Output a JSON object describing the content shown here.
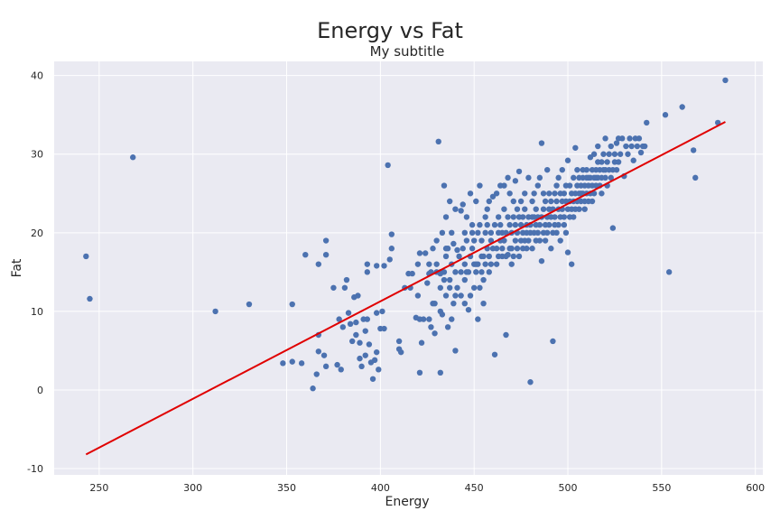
{
  "chart_data": {
    "type": "scatter",
    "title": "Energy vs Fat",
    "subtitle": "My subtitle",
    "xlabel": "Energy",
    "ylabel": "Fat",
    "xlim": [
      226,
      604
    ],
    "ylim": [
      -10.8,
      41.8
    ],
    "xticks": [
      250,
      300,
      350,
      400,
      450,
      500,
      550,
      600
    ],
    "yticks": [
      -10,
      0,
      10,
      20,
      30,
      40
    ],
    "grid": true,
    "colors": {
      "points": "#4c72b0",
      "line": "#e00000",
      "background": "#eaeaf2"
    },
    "fit_line": {
      "x": [
        243,
        584
      ],
      "y": [
        -8.2,
        34.1
      ]
    },
    "points": [
      [
        243,
        17
      ],
      [
        245,
        11.6
      ],
      [
        268,
        29.6
      ],
      [
        312,
        10
      ],
      [
        330,
        10.9
      ],
      [
        348,
        3.4
      ],
      [
        353,
        10.9
      ],
      [
        353,
        3.6
      ],
      [
        358,
        3.4
      ],
      [
        360,
        17.2
      ],
      [
        364,
        0.2
      ],
      [
        366,
        2
      ],
      [
        367,
        16
      ],
      [
        367,
        4.9
      ],
      [
        367,
        7
      ],
      [
        370,
        4.4
      ],
      [
        371,
        17.2
      ],
      [
        371,
        19
      ],
      [
        371,
        3
      ],
      [
        375,
        13
      ],
      [
        377,
        3.2
      ],
      [
        378,
        9
      ],
      [
        379,
        2.6
      ],
      [
        380,
        8
      ],
      [
        381,
        13
      ],
      [
        382,
        14
      ],
      [
        383,
        9.8
      ],
      [
        384,
        8.4
      ],
      [
        385,
        6.2
      ],
      [
        386,
        11.8
      ],
      [
        387,
        7
      ],
      [
        387,
        8.6
      ],
      [
        388,
        12
      ],
      [
        389,
        4
      ],
      [
        389,
        6
      ],
      [
        390,
        3
      ],
      [
        391,
        9
      ],
      [
        392,
        4.4
      ],
      [
        392,
        7.5
      ],
      [
        393,
        15
      ],
      [
        393,
        16
      ],
      [
        393,
        9
      ],
      [
        394,
        5.8
      ],
      [
        395,
        3.5
      ],
      [
        396,
        1.4
      ],
      [
        397,
        3.8
      ],
      [
        398,
        4.8
      ],
      [
        398,
        9.8
      ],
      [
        398,
        15.8
      ],
      [
        399,
        2.6
      ],
      [
        400,
        7.8
      ],
      [
        401,
        10
      ],
      [
        402,
        7.8
      ],
      [
        402,
        15.8
      ],
      [
        404,
        28.6
      ],
      [
        405,
        16.6
      ],
      [
        406,
        18
      ],
      [
        406,
        19.8
      ],
      [
        410,
        5.2
      ],
      [
        410,
        6.2
      ],
      [
        411,
        4.8
      ],
      [
        413,
        13
      ],
      [
        415,
        14.8
      ],
      [
        416,
        13
      ],
      [
        417,
        14.8
      ],
      [
        419,
        9.2
      ],
      [
        420,
        16
      ],
      [
        420,
        12
      ],
      [
        421,
        17.4
      ],
      [
        421,
        9
      ],
      [
        421,
        2.2
      ],
      [
        422,
        6
      ],
      [
        423,
        9
      ],
      [
        424,
        17.4
      ],
      [
        425,
        13.6
      ],
      [
        426,
        14.8
      ],
      [
        426,
        9
      ],
      [
        426,
        16
      ],
      [
        427,
        15
      ],
      [
        427,
        8
      ],
      [
        428,
        18
      ],
      [
        428,
        11
      ],
      [
        429,
        11
      ],
      [
        429,
        7.2
      ],
      [
        430,
        15
      ],
      [
        430,
        16
      ],
      [
        430,
        19
      ],
      [
        431,
        31.6
      ],
      [
        432,
        13
      ],
      [
        432,
        14.8
      ],
      [
        432,
        15
      ],
      [
        432,
        10
      ],
      [
        432,
        2.2
      ],
      [
        433,
        20
      ],
      [
        433,
        9.6
      ],
      [
        434,
        15
      ],
      [
        434,
        14
      ],
      [
        434,
        26
      ],
      [
        435,
        17
      ],
      [
        435,
        22
      ],
      [
        435,
        18
      ],
      [
        435,
        12
      ],
      [
        436,
        18
      ],
      [
        436,
        8
      ],
      [
        437,
        24
      ],
      [
        437,
        14
      ],
      [
        437,
        13
      ],
      [
        438,
        16
      ],
      [
        438,
        9
      ],
      [
        438,
        20
      ],
      [
        439,
        11
      ],
      [
        439,
        18.6
      ],
      [
        440,
        12
      ],
      [
        440,
        15
      ],
      [
        440,
        23
      ],
      [
        440,
        5
      ],
      [
        441,
        17.8
      ],
      [
        441,
        13
      ],
      [
        442,
        17
      ],
      [
        443,
        12
      ],
      [
        443,
        15
      ],
      [
        443,
        22.8
      ],
      [
        444,
        23.6
      ],
      [
        444,
        18
      ],
      [
        445,
        16
      ],
      [
        445,
        20
      ],
      [
        445,
        11
      ],
      [
        445,
        14
      ],
      [
        446,
        22
      ],
      [
        446,
        15
      ],
      [
        446,
        19
      ],
      [
        447,
        10.2
      ],
      [
        447,
        15
      ],
      [
        448,
        12
      ],
      [
        448,
        17
      ],
      [
        448,
        25
      ],
      [
        449,
        18
      ],
      [
        449,
        20
      ],
      [
        449,
        21
      ],
      [
        450,
        16
      ],
      [
        450,
        13
      ],
      [
        450,
        19
      ],
      [
        451,
        16
      ],
      [
        451,
        15
      ],
      [
        451,
        24
      ],
      [
        452,
        16
      ],
      [
        452,
        20
      ],
      [
        452,
        9
      ],
      [
        453,
        21
      ],
      [
        453,
        13
      ],
      [
        453,
        26
      ],
      [
        454,
        15
      ],
      [
        454,
        19
      ],
      [
        454,
        17
      ],
      [
        455,
        14
      ],
      [
        455,
        17
      ],
      [
        455,
        11
      ],
      [
        456,
        20
      ],
      [
        456,
        16
      ],
      [
        456,
        22
      ],
      [
        457,
        21
      ],
      [
        457,
        23
      ],
      [
        457,
        18
      ],
      [
        458,
        15
      ],
      [
        458,
        17
      ],
      [
        458,
        24
      ],
      [
        459,
        16
      ],
      [
        459,
        19
      ],
      [
        459,
        20
      ],
      [
        460,
        18
      ],
      [
        460,
        24.6
      ],
      [
        461,
        4.5
      ],
      [
        461,
        21
      ],
      [
        462,
        16
      ],
      [
        462,
        18
      ],
      [
        462,
        25
      ],
      [
        463,
        20
      ],
      [
        463,
        17
      ],
      [
        463,
        22
      ],
      [
        464,
        21
      ],
      [
        464,
        26
      ],
      [
        464,
        19
      ],
      [
        465,
        17
      ],
      [
        465,
        18
      ],
      [
        465,
        20
      ],
      [
        466,
        23
      ],
      [
        466,
        19
      ],
      [
        466,
        26
      ],
      [
        467,
        17
      ],
      [
        467,
        20
      ],
      [
        467,
        7
      ],
      [
        468,
        27
      ],
      [
        468,
        17.2
      ],
      [
        468,
        22
      ],
      [
        469,
        18
      ],
      [
        469,
        21
      ],
      [
        469,
        25
      ],
      [
        470,
        16
      ],
      [
        470,
        18
      ],
      [
        470,
        20
      ],
      [
        471,
        17
      ],
      [
        471,
        22
      ],
      [
        471,
        24
      ],
      [
        472,
        19
      ],
      [
        472,
        21
      ],
      [
        472,
        26.6
      ],
      [
        473,
        18
      ],
      [
        473,
        20
      ],
      [
        473,
        23
      ],
      [
        474,
        17
      ],
      [
        474,
        22
      ],
      [
        474,
        27.8
      ],
      [
        475,
        19
      ],
      [
        475,
        21
      ],
      [
        475,
        24
      ],
      [
        476,
        18
      ],
      [
        476,
        20
      ],
      [
        476,
        22
      ],
      [
        477,
        19
      ],
      [
        477,
        23
      ],
      [
        477,
        25
      ],
      [
        478,
        18
      ],
      [
        478,
        21
      ],
      [
        478,
        20
      ],
      [
        479,
        22
      ],
      [
        479,
        19
      ],
      [
        479,
        27
      ],
      [
        480,
        20
      ],
      [
        480,
        1
      ],
      [
        480,
        21
      ],
      [
        481,
        22
      ],
      [
        481,
        18
      ],
      [
        481,
        24
      ],
      [
        482,
        20
      ],
      [
        482,
        22
      ],
      [
        482,
        25
      ],
      [
        483,
        19
      ],
      [
        483,
        21
      ],
      [
        483,
        23
      ],
      [
        484,
        20
      ],
      [
        484,
        22
      ],
      [
        484,
        26
      ],
      [
        485,
        21
      ],
      [
        485,
        19
      ],
      [
        485,
        27
      ],
      [
        486,
        31.4
      ],
      [
        486,
        16.4
      ],
      [
        486,
        22
      ],
      [
        487,
        20
      ],
      [
        487,
        23
      ],
      [
        487,
        25
      ],
      [
        488,
        21
      ],
      [
        488,
        19
      ],
      [
        488,
        24
      ],
      [
        489,
        22
      ],
      [
        489,
        20
      ],
      [
        489,
        28
      ],
      [
        490,
        23
      ],
      [
        490,
        21
      ],
      [
        490,
        25
      ],
      [
        491,
        22
      ],
      [
        491,
        18
      ],
      [
        491,
        24
      ],
      [
        492,
        6.2
      ],
      [
        492,
        20
      ],
      [
        492,
        23
      ],
      [
        493,
        21
      ],
      [
        493,
        25
      ],
      [
        493,
        22
      ],
      [
        494,
        26
      ],
      [
        494,
        24
      ],
      [
        494,
        20
      ],
      [
        495,
        23
      ],
      [
        495,
        21
      ],
      [
        495,
        27
      ],
      [
        496,
        22
      ],
      [
        496,
        25
      ],
      [
        496,
        19
      ],
      [
        497,
        24
      ],
      [
        497,
        23
      ],
      [
        497,
        28
      ],
      [
        498,
        22
      ],
      [
        498,
        25
      ],
      [
        498,
        21
      ],
      [
        499,
        24
      ],
      [
        499,
        20
      ],
      [
        499,
        26
      ],
      [
        500,
        23
      ],
      [
        500,
        17.5
      ],
      [
        500,
        29.2
      ],
      [
        501,
        24
      ],
      [
        501,
        22
      ],
      [
        501,
        26
      ],
      [
        502,
        25
      ],
      [
        502,
        23
      ],
      [
        502,
        16
      ],
      [
        503,
        24
      ],
      [
        503,
        27
      ],
      [
        503,
        22
      ],
      [
        504,
        25
      ],
      [
        504,
        23
      ],
      [
        504,
        30.8
      ],
      [
        505,
        26
      ],
      [
        505,
        24
      ],
      [
        505,
        28
      ],
      [
        506,
        25
      ],
      [
        506,
        23
      ],
      [
        506,
        27
      ],
      [
        507,
        26
      ],
      [
        507,
        24
      ],
      [
        507,
        25
      ],
      [
        508,
        27
      ],
      [
        508,
        25
      ],
      [
        508,
        28
      ],
      [
        509,
        26
      ],
      [
        509,
        24
      ],
      [
        509,
        23
      ],
      [
        510,
        27
      ],
      [
        510,
        25
      ],
      [
        510,
        28
      ],
      [
        511,
        26
      ],
      [
        511,
        24
      ],
      [
        511,
        27
      ],
      [
        512,
        25
      ],
      [
        512,
        27
      ],
      [
        512,
        29.6
      ],
      [
        513,
        26
      ],
      [
        513,
        28
      ],
      [
        513,
        24
      ],
      [
        514,
        27
      ],
      [
        514,
        25
      ],
      [
        514,
        30
      ],
      [
        515,
        28
      ],
      [
        515,
        26
      ],
      [
        515,
        27
      ],
      [
        516,
        27
      ],
      [
        516,
        29
      ],
      [
        516,
        31
      ],
      [
        517,
        28
      ],
      [
        517,
        26
      ],
      [
        518,
        27
      ],
      [
        518,
        29
      ],
      [
        518,
        25
      ],
      [
        519,
        28
      ],
      [
        519,
        30
      ],
      [
        520,
        28
      ],
      [
        520,
        27
      ],
      [
        520,
        32
      ],
      [
        521,
        29
      ],
      [
        521,
        26
      ],
      [
        522,
        28
      ],
      [
        522,
        30
      ],
      [
        523,
        27
      ],
      [
        523,
        31
      ],
      [
        524,
        28
      ],
      [
        524,
        20.6
      ],
      [
        525,
        29
      ],
      [
        525,
        30
      ],
      [
        526,
        28
      ],
      [
        526,
        31.4
      ],
      [
        527,
        32
      ],
      [
        527,
        29
      ],
      [
        528,
        30
      ],
      [
        529,
        32
      ],
      [
        530,
        27.2
      ],
      [
        531,
        31
      ],
      [
        532,
        30
      ],
      [
        533,
        32
      ],
      [
        534,
        31
      ],
      [
        535,
        29.2
      ],
      [
        536,
        32
      ],
      [
        537,
        31
      ],
      [
        538,
        32
      ],
      [
        539,
        30.2
      ],
      [
        540,
        31
      ],
      [
        541,
        31
      ],
      [
        542,
        34
      ],
      [
        552,
        35
      ],
      [
        554,
        15
      ],
      [
        561,
        36
      ],
      [
        567,
        30.5
      ],
      [
        568,
        27
      ],
      [
        580,
        34
      ],
      [
        584,
        39.4
      ]
    ]
  }
}
